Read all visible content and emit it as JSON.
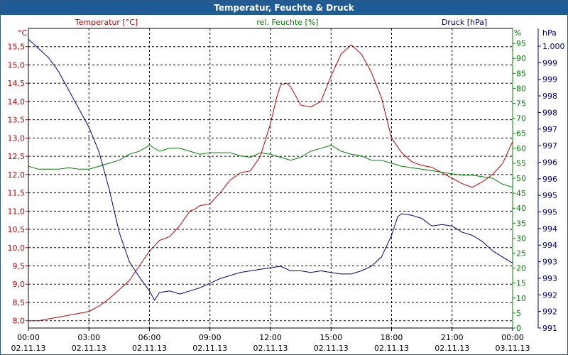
{
  "title": "Temperatur, Feuchte & Druck",
  "chart_data": {
    "type": "line",
    "title": "Temperatur, Feuchte & Druck",
    "grid": true,
    "x_ticks": [
      {
        "time": "00:00",
        "date": "02.11.13"
      },
      {
        "time": "03:00",
        "date": "02.11.13"
      },
      {
        "time": "06:00",
        "date": "02.11.13"
      },
      {
        "time": "09:00",
        "date": "02.11.13"
      },
      {
        "time": "12:00",
        "date": "02.11.13"
      },
      {
        "time": "15:00",
        "date": "02.11.13"
      },
      {
        "time": "18:00",
        "date": "02.11.13"
      },
      {
        "time": "21:00",
        "date": "02.11.13"
      },
      {
        "time": "00:00",
        "date": "03.11.13"
      }
    ],
    "axes": {
      "temp": {
        "unit": "°C",
        "label": "Temperatur [°C]",
        "ylim": [
          7.8,
          16.0
        ],
        "ticks": [
          "8,0",
          "8,5",
          "9,0",
          "9,5",
          "10,0",
          "10,5",
          "11,0",
          "11,5",
          "12,0",
          "12,5",
          "13,0",
          "13,5",
          "14,0",
          "14,5",
          "15,0",
          "15,5"
        ],
        "color": "#c00000"
      },
      "hum": {
        "unit": "%",
        "label": "rel. Feuchte [%]",
        "ylim": [
          0,
          100
        ],
        "ticks": [
          "0",
          "5",
          "10",
          "15",
          "20",
          "25",
          "30",
          "35",
          "40",
          "45",
          "50",
          "55",
          "60",
          "65",
          "70",
          "75",
          "80",
          "85",
          "90",
          "95"
        ],
        "color": "#008000"
      },
      "press": {
        "unit": "hPa",
        "label": "Druck [hPa]",
        "ylim": [
          990.9,
          1000.6
        ],
        "ticks": [
          "991",
          "992",
          "992",
          "993",
          "993",
          "994",
          "994",
          "995",
          "995",
          "996",
          "996",
          "997",
          "997",
          "998",
          "998",
          "999",
          "999",
          "1.000"
        ],
        "color": "#000080"
      }
    },
    "series": [
      {
        "name": "Temperatur [°C]",
        "axis": "temp",
        "x": [
          0,
          0.5,
          1,
          1.5,
          2,
          2.5,
          3,
          3.5,
          4,
          4.5,
          5,
          5.5,
          6,
          6.25,
          6.5,
          7,
          7.5,
          8,
          8.25,
          8.5,
          9,
          9.5,
          10,
          10.5,
          11,
          11.5,
          12,
          12.3,
          12.5,
          12.8,
          13,
          13.5,
          14,
          14.5,
          15,
          15.5,
          16,
          16.2,
          16.5,
          17,
          17.5,
          18,
          18.5,
          19,
          19.5,
          20,
          20.5,
          21,
          21.5,
          22,
          22.5,
          23,
          23.5,
          24
        ],
        "values": [
          8.0,
          8.0,
          8.05,
          8.1,
          8.15,
          8.2,
          8.25,
          8.4,
          8.6,
          8.85,
          9.1,
          9.5,
          9.9,
          10.05,
          10.2,
          10.3,
          10.6,
          11.0,
          11.05,
          11.15,
          11.2,
          11.5,
          11.85,
          12.05,
          12.1,
          12.5,
          13.4,
          14.1,
          14.45,
          14.5,
          14.4,
          13.9,
          13.85,
          14.0,
          14.7,
          15.3,
          15.55,
          15.45,
          15.3,
          14.8,
          14.1,
          13.0,
          12.6,
          12.35,
          12.25,
          12.2,
          12.05,
          11.9,
          11.75,
          11.65,
          11.8,
          12.0,
          12.3,
          12.9
        ]
      },
      {
        "name": "rel. Feuchte [%]",
        "axis": "hum",
        "x": [
          0,
          0.5,
          1,
          1.5,
          2,
          2.5,
          3,
          3.5,
          4,
          4.5,
          5,
          5.5,
          6,
          6.5,
          7,
          7.5,
          8,
          8.5,
          9,
          9.5,
          10,
          10.5,
          11,
          11.5,
          12,
          12.5,
          13,
          13.5,
          14,
          14.5,
          15,
          15.5,
          16,
          16.5,
          17,
          17.5,
          18,
          18.5,
          19,
          19.5,
          20,
          20.5,
          21,
          21.5,
          22,
          22.5,
          23,
          23.5,
          24
        ],
        "values": [
          54,
          53,
          53,
          53,
          53.5,
          53,
          53,
          54,
          55,
          56,
          58,
          59,
          61,
          59,
          60,
          60,
          59,
          58,
          58.5,
          58.5,
          58.5,
          57.5,
          57,
          58.5,
          58,
          57,
          56,
          57,
          59,
          60,
          61,
          59,
          58,
          57.5,
          56,
          56,
          55,
          54,
          53.5,
          53,
          52.5,
          52,
          51.5,
          51,
          51,
          50.5,
          50,
          48,
          47
        ]
      },
      {
        "name": "Druck [hPa]",
        "axis": "press",
        "x": [
          0,
          0.5,
          1,
          1.5,
          2,
          2.5,
          3,
          3.5,
          4,
          4.5,
          5,
          5.5,
          6,
          6.25,
          6.5,
          7,
          7.5,
          8,
          8.5,
          9,
          9.5,
          10,
          10.5,
          11,
          11.5,
          12,
          12.5,
          13,
          13.5,
          14,
          14.5,
          15,
          15.5,
          16,
          16.5,
          17,
          17.5,
          18,
          18.3,
          18.5,
          19,
          19.5,
          20,
          20.5,
          21,
          21.5,
          22,
          22.5,
          23,
          23.5,
          24
        ],
        "values": [
          1000.25,
          999.95,
          999.65,
          999.2,
          998.6,
          998.0,
          997.4,
          996.6,
          995.4,
          994.0,
          993.05,
          992.55,
          992.1,
          991.8,
          992.05,
          992.1,
          992.0,
          992.1,
          992.2,
          992.35,
          992.5,
          992.6,
          992.7,
          992.75,
          992.8,
          992.85,
          992.9,
          992.75,
          992.75,
          992.7,
          992.75,
          992.7,
          992.65,
          992.65,
          992.75,
          992.9,
          993.2,
          993.9,
          994.5,
          994.6,
          994.55,
          994.45,
          994.2,
          994.25,
          994.2,
          994.0,
          993.9,
          993.7,
          993.4,
          993.2,
          993.0
        ]
      }
    ]
  }
}
